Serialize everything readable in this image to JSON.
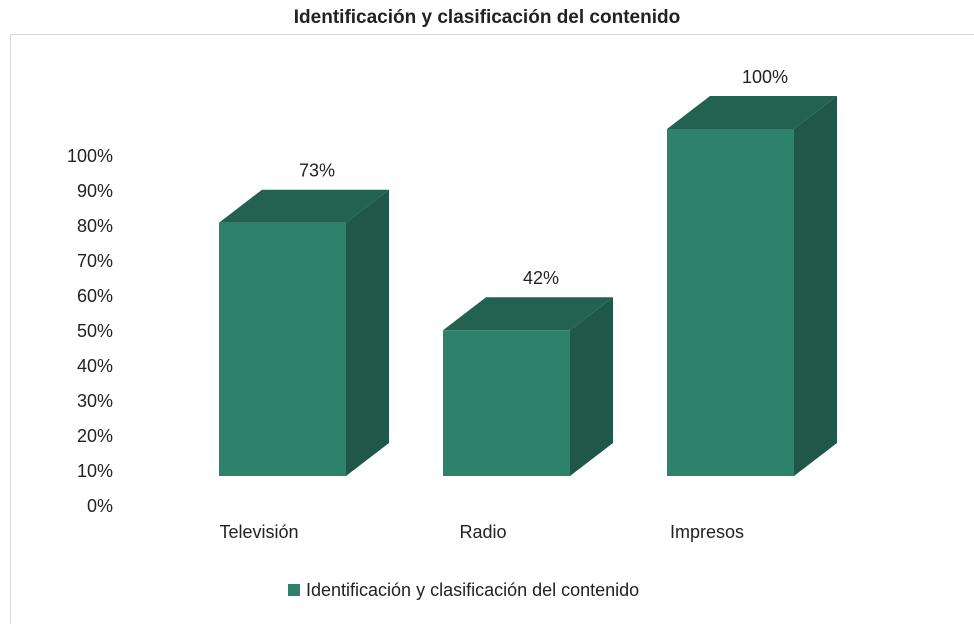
{
  "chart_data": {
    "type": "bar3d",
    "title": "Identificación y clasificación del contenido",
    "categories": [
      "Televisión",
      "Radio",
      "Impresos"
    ],
    "series": [
      {
        "name": "Identificación y clasificación del contenido",
        "color": "#2e816b",
        "values": [
          73,
          42,
          100
        ],
        "value_labels": [
          "73%",
          "42%",
          "100%"
        ]
      }
    ],
    "ylim": [
      0,
      100
    ],
    "yticks": [
      {
        "value": 0,
        "label": "0%"
      },
      {
        "value": 10,
        "label": "10%"
      },
      {
        "value": 20,
        "label": "20%"
      },
      {
        "value": 30,
        "label": "30%"
      },
      {
        "value": 40,
        "label": "40%"
      },
      {
        "value": 50,
        "label": "50%"
      },
      {
        "value": 60,
        "label": "60%"
      },
      {
        "value": 70,
        "label": "70%"
      },
      {
        "value": 80,
        "label": "80%"
      },
      {
        "value": 90,
        "label": "90%"
      },
      {
        "value": 100,
        "label": "100%"
      }
    ],
    "legend": "bottom"
  }
}
